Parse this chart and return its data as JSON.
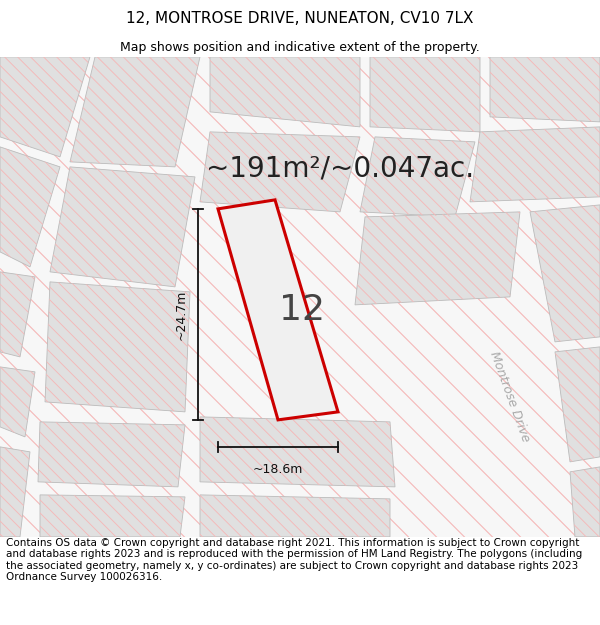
{
  "title_line1": "12, MONTROSE DRIVE, NUNEATON, CV10 7LX",
  "title_line2": "Map shows position and indicative extent of the property.",
  "footer_text": "Contains OS data © Crown copyright and database right 2021. This information is subject to Crown copyright and database rights 2023 and is reproduced with the permission of HM Land Registry. The polygons (including the associated geometry, namely x, y co-ordinates) are subject to Crown copyright and database rights 2023 Ordnance Survey 100026316.",
  "area_label": "~191m²/~0.047ac.",
  "plot_number": "12",
  "dim_width": "~18.6m",
  "dim_height": "~24.7m",
  "street_label": "Montrose Drive",
  "map_bg": "#f7f7f7",
  "block_fill": "#e0e0e0",
  "block_edge": "#bbbbbb",
  "road_line_color": "#f5b8b8",
  "plot_fill": "#eeeeee",
  "plot_edge_color": "#cc0000",
  "dim_color": "#111111",
  "street_text_color": "#aaaaaa",
  "area_text_color": "#222222",
  "plot_num_color": "#444444",
  "title_fontsize": 11,
  "subtitle_fontsize": 9,
  "footer_fontsize": 7.5,
  "area_fontsize": 20,
  "plot_num_fontsize": 26,
  "dim_fontsize": 9,
  "street_fontsize": 9
}
